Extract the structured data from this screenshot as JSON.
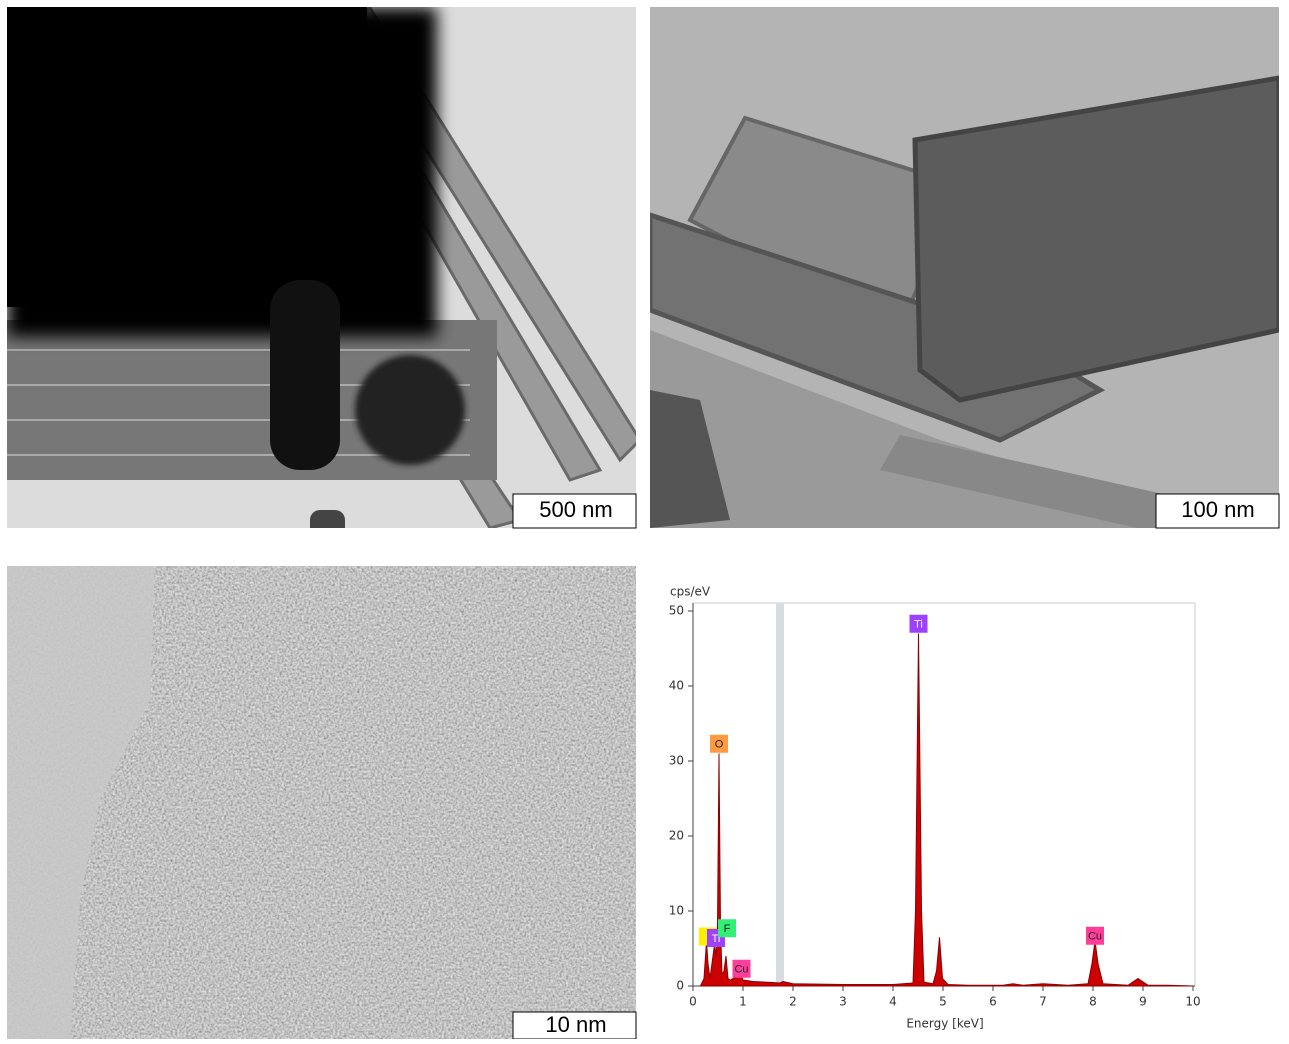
{
  "images": [
    {
      "scale_bar": "500 nm"
    },
    {
      "scale_bar": "100 nm"
    },
    {
      "scale_bar": "10 nm"
    }
  ],
  "chart_data": {
    "type": "area",
    "x_label": "Energy [keV]",
    "y_label": "cps/eV",
    "x": [
      0.15,
      0.22,
      0.27,
      0.3,
      0.34,
      0.38,
      0.43,
      0.46,
      0.49,
      0.52,
      0.55,
      0.58,
      0.62,
      0.66,
      0.7,
      0.75,
      0.85,
      0.93,
      1.0,
      1.2,
      1.5,
      1.74,
      1.8,
      2.0,
      3.0,
      4.0,
      4.4,
      4.45,
      4.51,
      4.57,
      4.62,
      4.8,
      4.87,
      4.93,
      4.99,
      5.1,
      5.5,
      6.2,
      6.4,
      6.6,
      7.0,
      7.5,
      7.9,
      7.98,
      8.04,
      8.1,
      8.2,
      8.7,
      8.9,
      9.1,
      9.5,
      10
    ],
    "series": [
      {
        "color": "#cc0000",
        "values": [
          0,
          1,
          6,
          3,
          1,
          3,
          5.5,
          4,
          8,
          31,
          8,
          1.5,
          2,
          4,
          1,
          0.8,
          1.2,
          2,
          0.8,
          0.6,
          0.5,
          0.4,
          0.6,
          0.3,
          0.2,
          0.2,
          0.4,
          10,
          47,
          10,
          0.5,
          0.3,
          2,
          6.5,
          1,
          0.2,
          0.1,
          0.1,
          0.3,
          0.1,
          0.3,
          0.1,
          0.3,
          3,
          6,
          3,
          0.3,
          0.1,
          1,
          0.1,
          0.1,
          0
        ]
      }
    ],
    "marker_x": 1.74,
    "xlim": [
      0,
      10
    ],
    "xticks": [
      0,
      1,
      2,
      3,
      4,
      5,
      6,
      7,
      8,
      9,
      10
    ],
    "ylim": [
      0,
      50
    ],
    "yticks": [
      0,
      10,
      20,
      30,
      40,
      50
    ],
    "peak_labels": [
      {
        "text": "Ti",
        "x": 4.51,
        "y": 48.3,
        "color": "#a040ff"
      },
      {
        "text": "O",
        "x": 0.52,
        "y": 32.3,
        "color": "#ff9a40"
      },
      {
        "x": 0.3,
        "y": 6.6,
        "color": "#ffee00"
      },
      {
        "text": "Ti",
        "x": 0.46,
        "y": 6.4,
        "color": "#a040ff"
      },
      {
        "text": "F",
        "x": 0.68,
        "y": 7.7,
        "color": "#33ee77"
      },
      {
        "text": "Cu",
        "x": 0.97,
        "y": 2.3,
        "color": "#ff3d9a"
      },
      {
        "text": "Cu",
        "x": 8.04,
        "y": 6.7,
        "color": "#ff3d9a"
      }
    ]
  }
}
